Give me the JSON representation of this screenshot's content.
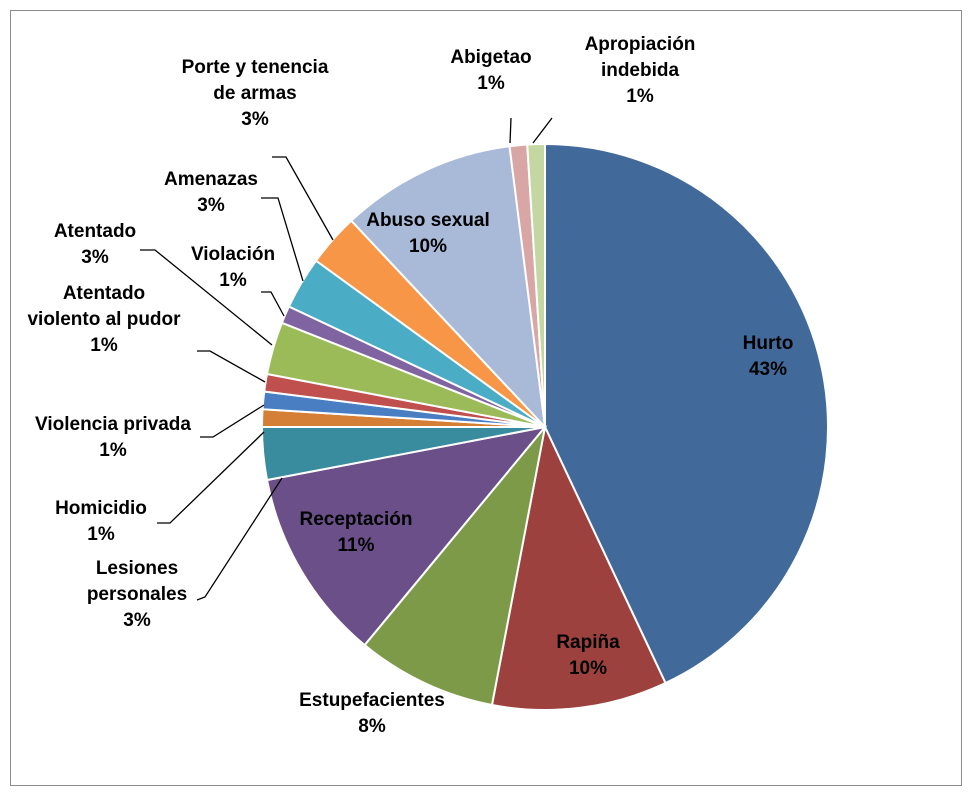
{
  "chart_data": {
    "type": "pie",
    "title": "",
    "start_angle_deg": 0,
    "direction": "clockwise",
    "slices": [
      {
        "name": "Hurto",
        "label_lines": [
          "Hurto",
          "43%"
        ],
        "value": 43,
        "color": "#416A9B"
      },
      {
        "name": "Rapiña",
        "label_lines": [
          "Rapiña",
          "10%"
        ],
        "value": 10,
        "color": "#9C413E"
      },
      {
        "name": "Estupefacientes",
        "label_lines": [
          "Estupefacientes",
          "8%"
        ],
        "value": 8,
        "color": "#7C9A47"
      },
      {
        "name": "Receptación",
        "label_lines": [
          "Receptación",
          "11%"
        ],
        "value": 11,
        "color": "#6A4F89"
      },
      {
        "name": "Lesiones personales",
        "label_lines": [
          "Lesiones",
          "personales",
          "3%"
        ],
        "value": 3,
        "color": "#398B9E"
      },
      {
        "name": "Homicidio",
        "label_lines": [
          "Homicidio",
          "1%"
        ],
        "value": 1,
        "color": "#D57E36"
      },
      {
        "name": "Violencia privada",
        "label_lines": [
          "Violencia privada",
          "1%"
        ],
        "value": 1,
        "color": "#4A7EC3"
      },
      {
        "name": "Atentado violento al pudor",
        "label_lines": [
          "Atentado",
          "violento al pudor",
          "1%"
        ],
        "value": 1,
        "color": "#C0504D"
      },
      {
        "name": "Atentado",
        "label_lines": [
          "Atentado",
          "3%"
        ],
        "value": 3,
        "color": "#9BBB59"
      },
      {
        "name": "Violación",
        "label_lines": [
          "Violación",
          "1%"
        ],
        "value": 1,
        "color": "#8064A2"
      },
      {
        "name": "Amenazas",
        "label_lines": [
          "Amenazas",
          "3%"
        ],
        "value": 3,
        "color": "#4BACC6"
      },
      {
        "name": "Porte y tenencia de armas",
        "label_lines": [
          "Porte y tenencia",
          "de armas",
          "3%"
        ],
        "value": 3,
        "color": "#F79646"
      },
      {
        "name": "Abuso sexual",
        "label_lines": [
          "Abuso sexual",
          "10%"
        ],
        "value": 10,
        "color": "#A9B9D8"
      },
      {
        "name": "Abigetao",
        "label_lines": [
          "Abigetao",
          "1%"
        ],
        "value": 1,
        "color": "#D9A6A6"
      },
      {
        "name": "Apropiación indebida",
        "label_lines": [
          "Apropiación",
          "indebida",
          "1%"
        ],
        "value": 1,
        "color": "#C4D6A2"
      }
    ],
    "legend": "none",
    "data_labels": "category name and percentage"
  }
}
